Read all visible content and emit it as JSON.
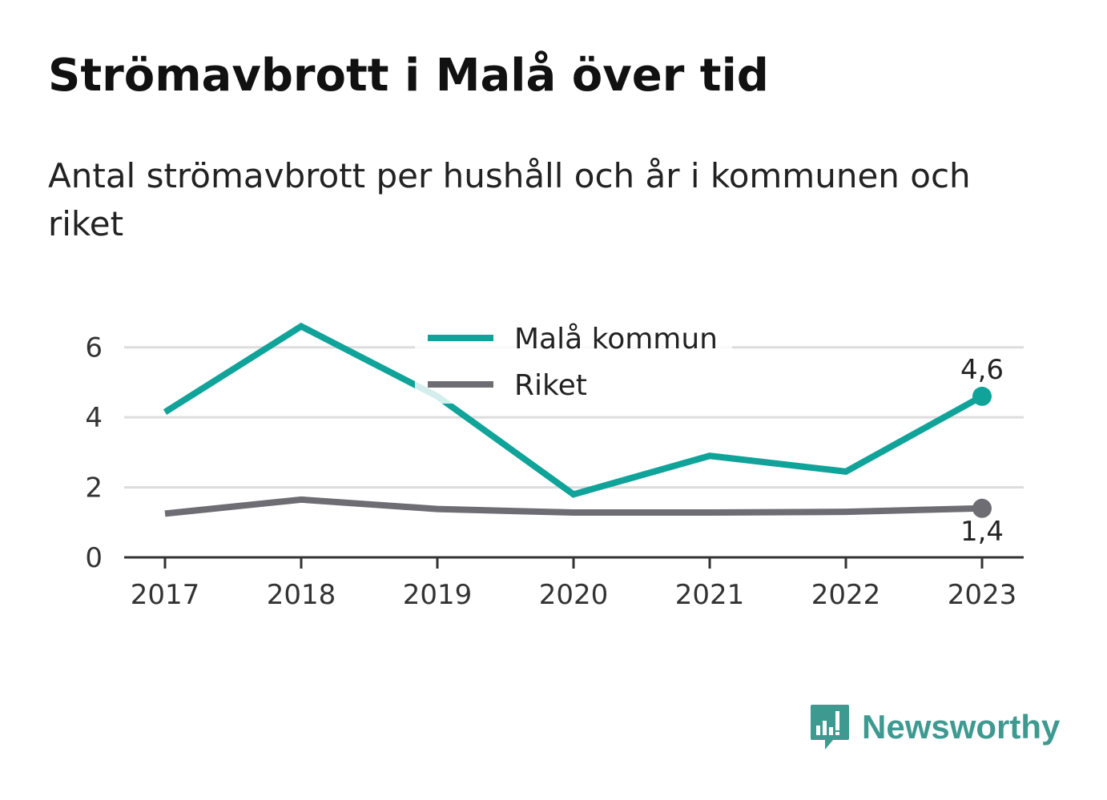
{
  "title": "Strömavbrott i Malå över tid",
  "subtitle": "Antal strömavbrott per hushåll och år i kommunen och riket",
  "brand": {
    "name": "Newsworthy",
    "color": "#3e9a91"
  },
  "chart_data": {
    "type": "line",
    "title": "Strömavbrott i Malå över tid",
    "subtitle": "Antal strömavbrott per hushåll och år i kommunen och riket",
    "x": [
      "2017",
      "2018",
      "2019",
      "2020",
      "2021",
      "2022",
      "2023"
    ],
    "series": [
      {
        "name": "Malå kommun",
        "color": "#0fa39a",
        "values": [
          4.15,
          6.6,
          4.6,
          1.8,
          2.9,
          2.45,
          4.6
        ],
        "end_label": "4,6"
      },
      {
        "name": "Riket",
        "color": "#6e6d73",
        "values": [
          1.25,
          1.65,
          1.38,
          1.28,
          1.28,
          1.3,
          1.4
        ],
        "end_label": "1,4"
      }
    ],
    "y_ticks": [
      0,
      2,
      4,
      6
    ],
    "y_tick_labels": [
      "0",
      "2",
      "4",
      "6"
    ],
    "ylim": [
      0,
      7
    ],
    "xlabel": "",
    "ylabel": "",
    "grid": true,
    "legend_position": "top-center"
  }
}
